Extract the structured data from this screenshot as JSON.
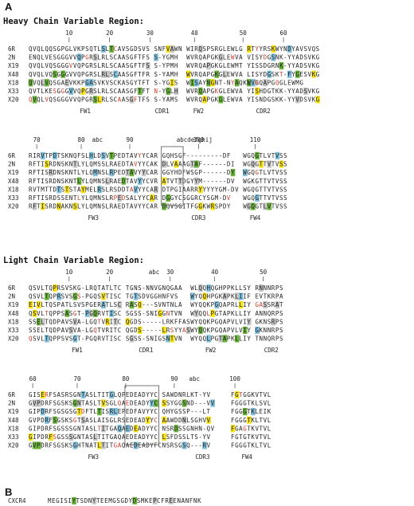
{
  "labels": {
    "panel_a": "A",
    "panel_b": "B"
  },
  "heavy": {
    "title": "Heavy Chain Variable Region:",
    "top": {
      "numbers": [
        {
          "t": "10",
          "col": 10
        },
        {
          "t": "20",
          "col": 20
        },
        {
          "t": "30",
          "col": 30
        },
        {
          "t": "40",
          "col": 41
        },
        {
          "t": "50",
          "col": 53
        },
        {
          "t": "60",
          "col": 63
        }
      ],
      "names": [
        "6R",
        "2N",
        "X19",
        "X48",
        "X18",
        "X33",
        "X20"
      ],
      "rows": [
        "QVQLQQSGPGLVKPSQTLSLTCAVSGDSVS SNFVAWN WIRQSPSRGLEWLG RTYYRSKWYNDYAVSVQS",
        "ENQLVESGGGVVQPGRSLRLSCAASGFTFS S-YGMH WVRQAPGKGLEWVA VISYDGSNK-YYADSVKG",
        "QVQLVQSGGGVVQPGRSLRLSCAASGFTFS S-YPMH WVRQAPGKGLEWMT YISSDGRNK-YYADSVKG",
        "QVQLVQSGGGVVQPGRSLRLSCAASGFTFR S-YAMH WVRQAPGKGLEWVA LISYDGSKT-FYGESVKG",
        "QVQLVQSGAEVKKPGASVKVSCKASGYTFT S-YGIS WISAYNGNT-NYAQKLQG WVRQAPGQGLEWMG",
        "QVTLKESGGGVVQPGRSLRLSCAASGFTFT N-YGLH WVRQAPGKGLEWVA YISHDGTKK-YYADSVKG",
        "QVQLVQSGGGVVQPGRSLRLSCAASGFTFS S-YAMS WVRQAPGKGLEWVA YISNDGSKK-YYVDSVKG"
      ],
      "regions": [
        {
          "t": "FW1",
          "col": 14
        },
        {
          "t": "CDR1",
          "col": 33
        },
        {
          "t": "FW2",
          "col": 42
        },
        {
          "t": "CDR2",
          "col": 58
        }
      ]
    },
    "bottom": {
      "numbers": [
        {
          "t": "70",
          "col": 2
        },
        {
          "t": "80",
          "col": 13
        },
        {
          "t": "abc",
          "col": 17
        },
        {
          "t": "90",
          "col": 25
        },
        {
          "t": "100",
          "col": 42
        },
        {
          "t": "abcdefghij",
          "col": 41
        },
        {
          "t": "110",
          "col": 56
        }
      ],
      "names": [
        "6R",
        "2N",
        "X19",
        "X48",
        "X18",
        "X33",
        "X20"
      ],
      "rows": [
        "RIRVTPDTSKNQFSLHLDSVTPEDTAVYYCAR GQHSGF---------DF WGQGTLVTVSS",
        "RFTISRDNSKNTLYLQMSSLRAEDTAVYYCAK DLVAAAGTAF------DI WGQGTTVTVSS",
        "RFTISRDNSKNTLYLQMNSLRPEDTAVYYCAR GGYHDFWSGP------DY WGQGTLVTVSS",
        "RFTISRDNSKNTLYLQMNSLRAEDTAVYYCVR ATVTTDGYYM------DV WGKGTTVTVSS",
        "RVTMTTDTSTSTAYMELRSLRSDDTAVYYCAR DTPGIAARRYYYYYGM-DV WGQGTTVTVSS",
        "RFTISRDSSENTLYLQMNSLRPEDSALYYCAR DGGYCSGGRCYSGM-DV WGQGTTVTVSS",
        "RFTISRDNAKNSLYLQMNSLRAEDTAVYYCAR DQVSGITFGGKWRSPDY WGQGTLVTVSS"
      ],
      "regions": [
        {
          "t": "FW3",
          "col": 16
        },
        {
          "t": "CDR3",
          "col": 42
        },
        {
          "t": "FW4",
          "col": 56
        }
      ]
    }
  },
  "light": {
    "title": "Light Chain Variable Region:",
    "top": {
      "numbers": [
        {
          "t": "10",
          "col": 10
        },
        {
          "t": "20",
          "col": 20
        },
        {
          "t": "abc",
          "col": 31
        },
        {
          "t": "30",
          "col": 35
        },
        {
          "t": "40",
          "col": 46
        },
        {
          "t": "50",
          "col": 58
        }
      ],
      "names": [
        "6R",
        "2N",
        "X19",
        "X48",
        "X18",
        "X33",
        "X20"
      ],
      "rows": [
        "QSVLTQPRSVSKG-LRQTATLTC TGNS-NNVGNQGAA WLQQHQGHPPKLLSY RNNNRPS",
        "QSVLTQPRSVSGS-PGQSVTISC TGTSDVGGHNFVS WYQQHPGKAPKLIIF EVTKRPA",
        "EIVLTQSPATLSVSPGERATLSC RASQ---SVNTNLA WYQQKPGQAPRLLIY GASSRAT",
        "QSVLTQPPSASGT-PGQRVTISC SGSS-SNIGGNTVN WYQQLPGTAPKLLIY ANNQRPS",
        "SSELTQDPAVSVA-LGQTVRITC QGDS-----LRKFFAS WYQQKPGQAPVLVIY GKNSRPS",
        "SSELTQDPAVSVA-LGQTVRITC QGDS-----LRSYYAS WYQQKPGQAPVLVIY GKNNRPS",
        "QSVLTQPPSVSGT-PGQRVTISC SGSS-SNIGSNTVN WYQQLPGTAPKLLIY TNNQRPS"
      ],
      "regions": [
        {
          "t": "FW1",
          "col": 12
        },
        {
          "t": "CDR1",
          "col": 29
        },
        {
          "t": "FW2",
          "col": 45
        },
        {
          "t": "CDR2",
          "col": 60
        }
      ]
    },
    "bottom": {
      "numbers": [
        {
          "t": "60",
          "col": 1
        },
        {
          "t": "70",
          "col": 12
        },
        {
          "t": "80",
          "col": 24
        },
        {
          "t": "90",
          "col": 36
        },
        {
          "t": "abc",
          "col": 41
        },
        {
          "t": "100",
          "col": 51
        }
      ],
      "names": [
        "6R",
        "2N",
        "X19",
        "X48",
        "X18",
        "X33",
        "X20"
      ],
      "rows": [
        "GISERFSASRSGNTASLTITGLQPEDEADYYC SAWDNRLKT-YV FGTGGKVTVL",
        "GVPDRFSGSKSGNTASLTVSGLQAEDEADYYC SSYGGSND---VV FGGGTKLSVL",
        "GIPDRFSGSGSGTDFTLTISRLEPEDFAVYYC QHYGSSP---LT FGGGTKLEIK",
        "GVPDRFSGSKSGTSASLAISGLRSEDEADYYC AAWDDNLSGHVV FGGGTKLTVL",
        "GIPDRFSGSSSGNTASLTITGAQAEDEADYYC NSRDSSGNHN-QV FGAGTKVTVL",
        "GIPDRFSGSSSGNTASLTITGAQAEDEADYYC LSFDSSLTS-YV FGTGTKVTVL",
        "GVPDRFSGSKSGHTNATLTITGAQAEDEADYFC NSRSGSQ---RV FGGGTKLTVL"
      ],
      "regions": [
        {
          "t": "FW3",
          "col": 16
        },
        {
          "t": "CDR3",
          "col": 43
        },
        {
          "t": "FW4",
          "col": 54
        }
      ]
    }
  },
  "panel_b": {
    "name": "CXCR4",
    "seq": "MEGISIYTSDNYTEEMGSGDYDSMKEPCFREENANFNK"
  },
  "colors": {
    "yellow": "#f7e21c",
    "green": "#6ab33b",
    "blue": "#80c0dc",
    "pink": "#f0a8a8",
    "gray": "#c8c8c8",
    "red_text": "#d23a2a",
    "dark_green": "#3a8a2a"
  }
}
